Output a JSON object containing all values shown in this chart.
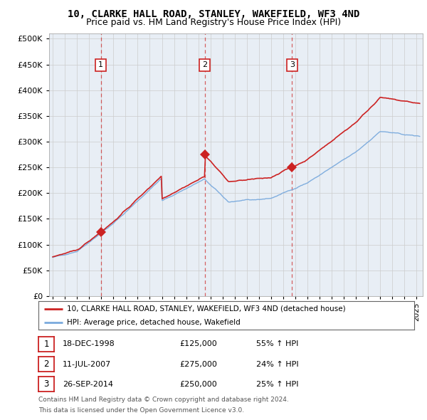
{
  "title": "10, CLARKE HALL ROAD, STANLEY, WAKEFIELD, WF3 4ND",
  "subtitle": "Price paid vs. HM Land Registry's House Price Index (HPI)",
  "title_fontsize": 10,
  "subtitle_fontsize": 9,
  "ylabel_values": [
    0,
    50000,
    100000,
    150000,
    200000,
    250000,
    300000,
    350000,
    400000,
    450000,
    500000
  ],
  "ylim": [
    0,
    510000
  ],
  "xlim_start": 1994.7,
  "xlim_end": 2025.5,
  "sale_points": [
    {
      "year": 1998.96,
      "price": 125000,
      "label": "1"
    },
    {
      "year": 2007.52,
      "price": 275000,
      "label": "2"
    },
    {
      "year": 2014.73,
      "price": 250000,
      "label": "3"
    }
  ],
  "legend_line1": "10, CLARKE HALL ROAD, STANLEY, WAKEFIELD, WF3 4ND (detached house)",
  "legend_line2": "HPI: Average price, detached house, Wakefield",
  "table_rows": [
    {
      "num": "1",
      "date": "18-DEC-1998",
      "price": "£125,000",
      "hpi": "55% ↑ HPI"
    },
    {
      "num": "2",
      "date": "11-JUL-2007",
      "price": "£275,000",
      "hpi": "24% ↑ HPI"
    },
    {
      "num": "3",
      "date": "26-SEP-2014",
      "price": "£250,000",
      "hpi": "25% ↑ HPI"
    }
  ],
  "footnote1": "Contains HM Land Registry data © Crown copyright and database right 2024.",
  "footnote2": "This data is licensed under the Open Government Licence v3.0.",
  "hpi_color": "#7aaadd",
  "sale_color": "#cc2222",
  "grid_color": "#cccccc",
  "background_color": "#ffffff",
  "plot_bg_color": "#e8eef5"
}
